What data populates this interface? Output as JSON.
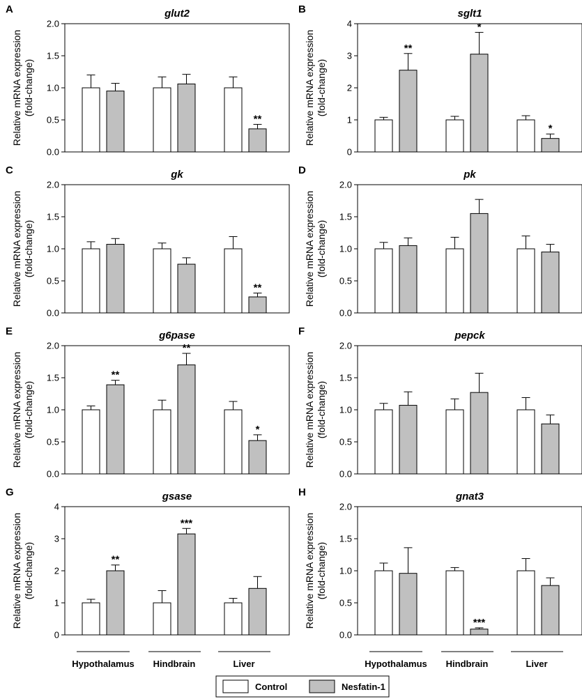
{
  "figure": {
    "groups": [
      "Hypothalamus",
      "Hindbrain",
      "Liver"
    ],
    "series_names": [
      "Control",
      "Nesfatin-1"
    ],
    "colors": {
      "control": "#ffffff",
      "nesfatin": "#c0c0c0",
      "stroke": "#000000"
    },
    "ylabel_line1": "Relative mRNA expression",
    "ylabel_line2": "(fold-change)"
  },
  "legend": {
    "control_label": "Control",
    "nesfatin_label": "Nesfatin-1"
  },
  "chart_data": [
    {
      "panel": "A",
      "title": "glut2",
      "type": "bar",
      "categories": [
        "Hypothalamus",
        "Hindbrain",
        "Liver"
      ],
      "ylim": [
        0,
        2.0
      ],
      "yticks": [
        "0.0",
        "0.5",
        "1.0",
        "1.5",
        "2.0"
      ],
      "series": [
        {
          "name": "Control",
          "values": [
            1.0,
            1.0,
            1.0
          ],
          "errors": [
            0.2,
            0.17,
            0.17
          ],
          "sig": [
            "",
            "",
            ""
          ]
        },
        {
          "name": "Nesfatin-1",
          "values": [
            0.95,
            1.06,
            0.36
          ],
          "errors": [
            0.12,
            0.15,
            0.07
          ],
          "sig": [
            "",
            "",
            "**"
          ]
        }
      ]
    },
    {
      "panel": "B",
      "title": "sglt1",
      "type": "bar",
      "categories": [
        "Hypothalamus",
        "Hindbrain",
        "Liver"
      ],
      "ylim": [
        0,
        4
      ],
      "yticks": [
        "0",
        "1",
        "2",
        "3",
        "4"
      ],
      "series": [
        {
          "name": "Control",
          "values": [
            1.0,
            1.0,
            1.0
          ],
          "errors": [
            0.08,
            0.11,
            0.13
          ],
          "sig": [
            "",
            "",
            ""
          ]
        },
        {
          "name": "Nesfatin-1",
          "values": [
            2.55,
            3.05,
            0.42
          ],
          "errors": [
            0.52,
            0.68,
            0.14
          ],
          "sig": [
            "**",
            "*",
            "*"
          ]
        }
      ]
    },
    {
      "panel": "C",
      "title": "gk",
      "type": "bar",
      "categories": [
        "Hypothalamus",
        "Hindbrain",
        "Liver"
      ],
      "ylim": [
        0,
        2.0
      ],
      "yticks": [
        "0.0",
        "0.5",
        "1.0",
        "1.5",
        "2.0"
      ],
      "series": [
        {
          "name": "Control",
          "values": [
            1.0,
            1.0,
            1.0
          ],
          "errors": [
            0.11,
            0.09,
            0.19
          ],
          "sig": [
            "",
            "",
            ""
          ]
        },
        {
          "name": "Nesfatin-1",
          "values": [
            1.07,
            0.76,
            0.25
          ],
          "errors": [
            0.09,
            0.1,
            0.06
          ],
          "sig": [
            "",
            "",
            "**"
          ]
        }
      ]
    },
    {
      "panel": "D",
      "title": "pk",
      "type": "bar",
      "categories": [
        "Hypothalamus",
        "Hindbrain",
        "Liver"
      ],
      "ylim": [
        0,
        2.0
      ],
      "yticks": [
        "0.0",
        "0.5",
        "1.0",
        "1.5",
        "2.0"
      ],
      "series": [
        {
          "name": "Control",
          "values": [
            1.0,
            1.0,
            1.0
          ],
          "errors": [
            0.1,
            0.18,
            0.2
          ],
          "sig": [
            "",
            "",
            ""
          ]
        },
        {
          "name": "Nesfatin-1",
          "values": [
            1.05,
            1.55,
            0.95
          ],
          "errors": [
            0.12,
            0.22,
            0.12
          ],
          "sig": [
            "",
            "",
            ""
          ]
        }
      ]
    },
    {
      "panel": "E",
      "title": "g6pase",
      "type": "bar",
      "categories": [
        "Hypothalamus",
        "Hindbrain",
        "Liver"
      ],
      "ylim": [
        0,
        2.0
      ],
      "yticks": [
        "0.0",
        "0.5",
        "1.0",
        "1.5",
        "2.0"
      ],
      "series": [
        {
          "name": "Control",
          "values": [
            1.0,
            1.0,
            1.0
          ],
          "errors": [
            0.06,
            0.15,
            0.13
          ],
          "sig": [
            "",
            "",
            ""
          ]
        },
        {
          "name": "Nesfatin-1",
          "values": [
            1.39,
            1.7,
            0.52
          ],
          "errors": [
            0.07,
            0.18,
            0.09
          ],
          "sig": [
            "**",
            "**",
            "*"
          ]
        }
      ]
    },
    {
      "panel": "F",
      "title": "pepck",
      "type": "bar",
      "categories": [
        "Hypothalamus",
        "Hindbrain",
        "Liver"
      ],
      "ylim": [
        0,
        2.0
      ],
      "yticks": [
        "0.0",
        "0.5",
        "1.0",
        "1.5",
        "2.0"
      ],
      "series": [
        {
          "name": "Control",
          "values": [
            1.0,
            1.0,
            1.0
          ],
          "errors": [
            0.1,
            0.17,
            0.19
          ],
          "sig": [
            "",
            "",
            ""
          ]
        },
        {
          "name": "Nesfatin-1",
          "values": [
            1.07,
            1.27,
            0.78
          ],
          "errors": [
            0.21,
            0.3,
            0.14
          ],
          "sig": [
            "",
            "",
            ""
          ]
        }
      ]
    },
    {
      "panel": "G",
      "title": "gsase",
      "type": "bar",
      "categories": [
        "Hypothalamus",
        "Hindbrain",
        "Liver"
      ],
      "ylim": [
        0,
        4
      ],
      "yticks": [
        "0",
        "1",
        "2",
        "3",
        "4"
      ],
      "series": [
        {
          "name": "Control",
          "values": [
            1.0,
            1.0,
            1.0
          ],
          "errors": [
            0.11,
            0.38,
            0.14
          ],
          "sig": [
            "",
            "",
            ""
          ]
        },
        {
          "name": "Nesfatin-1",
          "values": [
            2.0,
            3.15,
            1.45
          ],
          "errors": [
            0.18,
            0.17,
            0.37
          ],
          "sig": [
            "**",
            "***",
            ""
          ]
        }
      ]
    },
    {
      "panel": "H",
      "title": "gnat3",
      "type": "bar",
      "categories": [
        "Hypothalamus",
        "Hindbrain",
        "Liver"
      ],
      "ylim": [
        0,
        2.0
      ],
      "yticks": [
        "0.0",
        "0.5",
        "1.0",
        "1.5",
        "2.0"
      ],
      "series": [
        {
          "name": "Control",
          "values": [
            1.0,
            1.0,
            1.0
          ],
          "errors": [
            0.12,
            0.05,
            0.19
          ],
          "sig": [
            "",
            "",
            ""
          ]
        },
        {
          "name": "Nesfatin-1",
          "values": [
            0.96,
            0.09,
            0.77
          ],
          "errors": [
            0.4,
            0.02,
            0.12
          ],
          "sig": [
            "",
            "***",
            ""
          ]
        }
      ]
    }
  ]
}
